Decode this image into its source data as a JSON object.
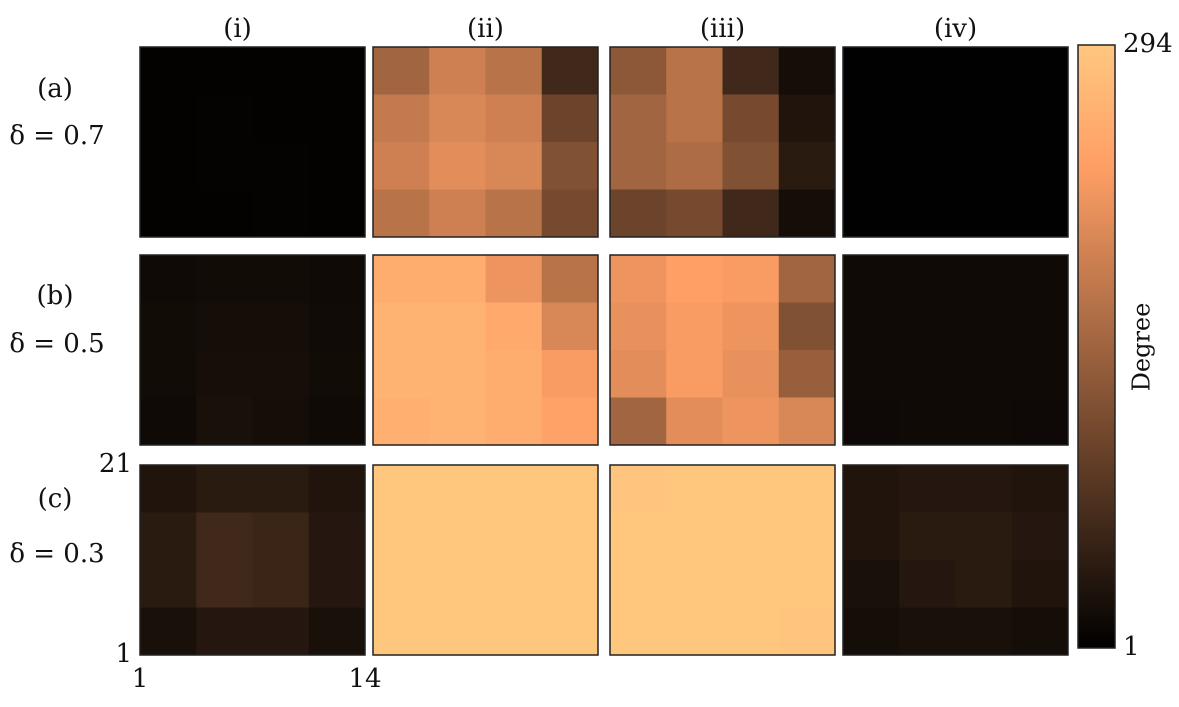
{
  "chart_data": {
    "type": "heatmap-grid",
    "colormap": "copper",
    "column_labels": [
      "(i)",
      "(ii)",
      "(iii)",
      "(iv)"
    ],
    "row_labels": [
      {
        "label": "(a)",
        "delta": "δ = 0.7"
      },
      {
        "label": "(b)",
        "delta": "δ = 0.5"
      },
      {
        "label": "(c)",
        "delta": "δ = 0.3"
      }
    ],
    "xlim": [
      1,
      14
    ],
    "xticks": [
      1,
      14
    ],
    "ylim": [
      1,
      21
    ],
    "yticks": [
      1,
      21
    ],
    "colorbar": {
      "label": "Degree",
      "lim": [
        1,
        294
      ],
      "ticks": [
        1,
        294
      ]
    },
    "panels": [
      [
        [
          [
            4,
            4,
            4,
            4
          ],
          [
            4,
            5,
            4,
            4
          ],
          [
            4,
            5,
            5,
            4
          ],
          [
            4,
            4,
            5,
            4
          ]
        ],
        [
          [
            150,
            190,
            170,
            60
          ],
          [
            180,
            200,
            190,
            100
          ],
          [
            190,
            210,
            200,
            120
          ],
          [
            170,
            190,
            170,
            110
          ]
        ],
        [
          [
            130,
            170,
            60,
            20
          ],
          [
            150,
            170,
            110,
            30
          ],
          [
            150,
            160,
            120,
            40
          ],
          [
            100,
            110,
            60,
            20
          ]
        ],
        [
          [
            3,
            3,
            3,
            3
          ],
          [
            3,
            3,
            3,
            3
          ],
          [
            3,
            3,
            3,
            3
          ],
          [
            3,
            3,
            3,
            3
          ]
        ]
      ],
      [
        [
          [
            15,
            18,
            18,
            15
          ],
          [
            18,
            20,
            20,
            17
          ],
          [
            18,
            22,
            22,
            18
          ],
          [
            15,
            25,
            20,
            15
          ]
        ],
        [
          [
            255,
            255,
            220,
            170
          ],
          [
            265,
            265,
            250,
            200
          ],
          [
            265,
            265,
            255,
            230
          ],
          [
            260,
            265,
            255,
            240
          ]
        ],
        [
          [
            220,
            235,
            230,
            150
          ],
          [
            215,
            230,
            220,
            120
          ],
          [
            210,
            230,
            215,
            140
          ],
          [
            150,
            210,
            220,
            200
          ]
        ],
        [
          [
            15,
            15,
            15,
            15
          ],
          [
            15,
            16,
            16,
            15
          ],
          [
            15,
            16,
            16,
            15
          ],
          [
            14,
            15,
            15,
            14
          ]
        ]
      ],
      [
        [
          [
            30,
            40,
            40,
            30
          ],
          [
            40,
            60,
            55,
            35
          ],
          [
            40,
            60,
            55,
            35
          ],
          [
            25,
            35,
            35,
            25
          ]
        ],
        [
          [
            293,
            293,
            293,
            293
          ],
          [
            293,
            293,
            293,
            293
          ],
          [
            293,
            293,
            293,
            293
          ],
          [
            293,
            293,
            293,
            293
          ]
        ],
        [
          [
            291,
            292,
            292,
            292
          ],
          [
            292,
            292,
            292,
            292
          ],
          [
            292,
            292,
            292,
            292
          ],
          [
            292,
            292,
            292,
            291
          ]
        ],
        [
          [
            30,
            35,
            35,
            30
          ],
          [
            30,
            40,
            40,
            35
          ],
          [
            25,
            35,
            40,
            30
          ],
          [
            20,
            25,
            25,
            20
          ]
        ]
      ]
    ]
  }
}
